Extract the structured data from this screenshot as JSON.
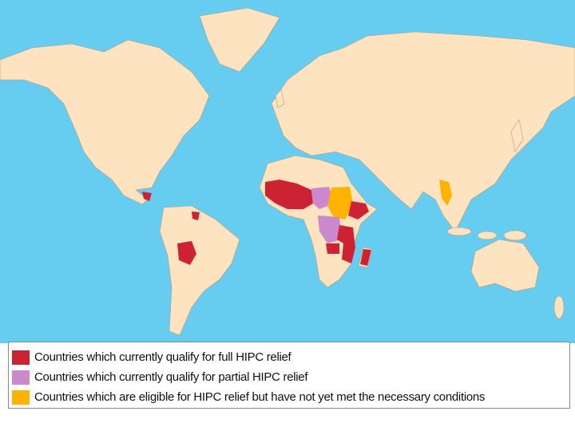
{
  "legend": {
    "items": [
      {
        "label": "Countries which currently qualify for full HIPC relief",
        "color": "#cc2233"
      },
      {
        "label": "Countries which currently qualify for partial HIPC relief",
        "color": "#cc88cc"
      },
      {
        "label": "Countries which are eligible for HIPC relief but have not yet met the necessary conditions",
        "color": "#ffb300"
      }
    ]
  }
}
